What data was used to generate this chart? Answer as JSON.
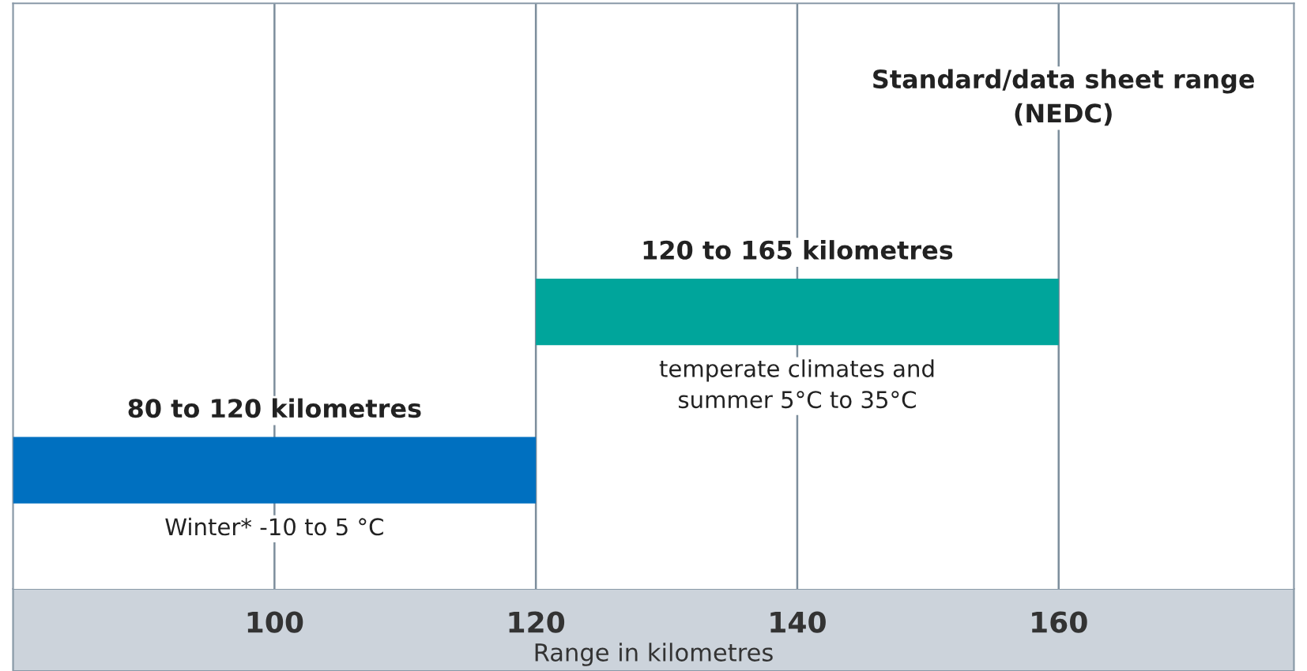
{
  "chart_data": {
    "type": "bar",
    "orientation": "horizontal",
    "xlabel": "Range in kilometres",
    "categories": [
      null,
      null
    ],
    "base": [
      120,
      80
    ],
    "values": [
      40,
      40
    ],
    "colors": [
      "#00a59b",
      "#0070c0"
    ],
    "xlim": [
      80,
      178
    ],
    "xticks": [
      100,
      120,
      140,
      160
    ],
    "grid": "x",
    "annotations": [
      "Standard/data sheet range\n(NEDC)",
      "120 to 165 kilometres",
      "temperate climates and\nsummer 5°C to 35°C",
      "80 to 120 kilometres",
      "Winter* -10 to 5 °C"
    ]
  }
}
